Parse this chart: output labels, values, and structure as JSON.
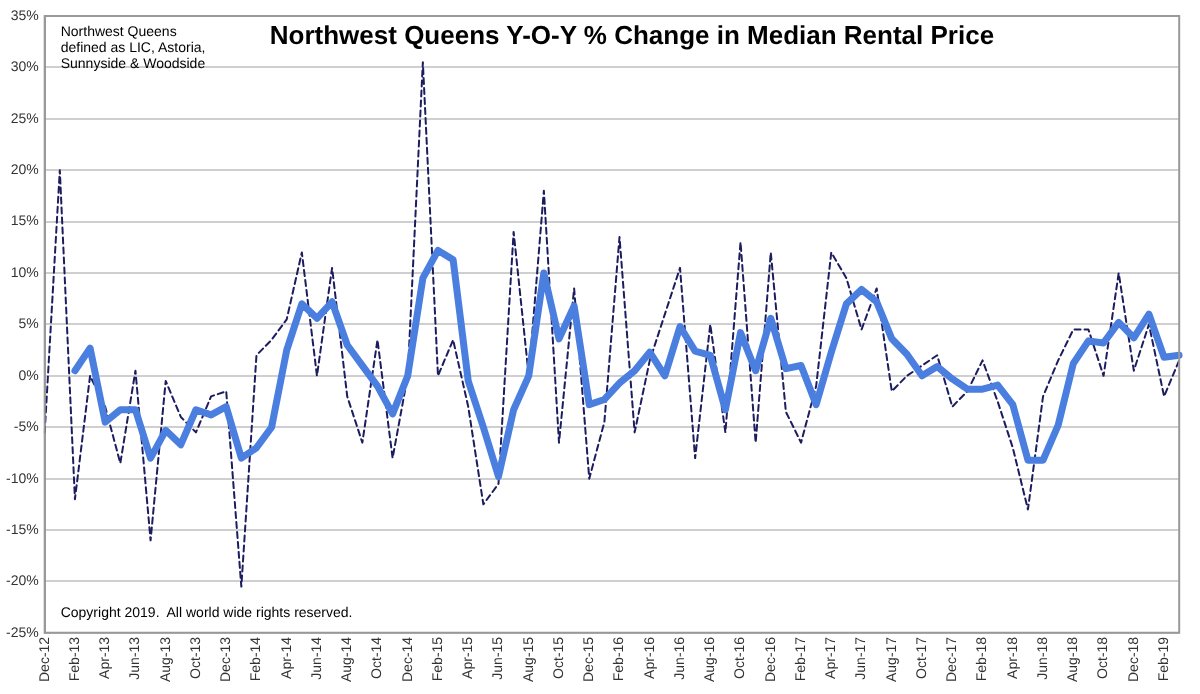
{
  "chart_data": {
    "type": "line",
    "title": "Northwest Queens Y-O-Y % Change in Median Rental Price",
    "annotations": [
      "Northwest Queens\ndefined as LIC, Astoria,\nSunnyside & Woodside",
      "Copyright 2019.  All world wide rights reserved."
    ],
    "categories": [
      "Dec-12",
      null,
      "Feb-13",
      null,
      "Apr-13",
      null,
      "Jun-13",
      null,
      "Aug-13",
      null,
      "Oct-13",
      null,
      "Dec-13",
      null,
      "Feb-14",
      null,
      "Apr-14",
      null,
      "Jun-14",
      null,
      "Aug-14",
      null,
      "Oct-14",
      null,
      "Dec-14",
      null,
      "Feb-15",
      null,
      "Apr-15",
      null,
      "Jun-15",
      null,
      "Aug-15",
      null,
      "Oct-15",
      null,
      "Dec-15",
      null,
      "Feb-16",
      null,
      "Apr-16",
      null,
      "Jun-16",
      null,
      "Aug-16",
      null,
      "Oct-16",
      null,
      "Dec-16",
      null,
      "Feb-17",
      null,
      "Apr-17",
      null,
      "Jun-17",
      null,
      "Aug-17",
      null,
      "Oct-17",
      null,
      "Dec-17",
      null,
      "Feb-18",
      null,
      "Apr-18",
      null,
      "Jun-18",
      null,
      "Aug-18",
      null,
      "Oct-18",
      null,
      "Dec-18",
      null,
      "Feb-19",
      null
    ],
    "series": [
      {
        "color": "#1c1c5e",
        "line_style": "dashed",
        "values": [
          -5.5,
          20,
          -12,
          0,
          -3,
          -8.5,
          0.5,
          -16,
          -0.5,
          -4,
          -5.5,
          -2,
          -1.5,
          -20.5,
          2,
          3.5,
          5.5,
          12,
          0,
          10.5,
          -2,
          -6.5,
          3.5,
          -8,
          0,
          30.5,
          0,
          3.5,
          -3,
          -12.5,
          -10.5,
          14,
          0,
          18,
          -6.5,
          8.5,
          -10,
          -4.5,
          13.5,
          -5.5,
          1.5,
          6,
          10.5,
          -8,
          5,
          -5.5,
          13,
          -6.5,
          12,
          -3.5,
          -6.5,
          -1,
          12,
          9.5,
          4.5,
          8.5,
          -1.5,
          0,
          1,
          2,
          -3,
          -1.5,
          1.5,
          -2.5,
          -7,
          -13,
          -2,
          1.5,
          4.5,
          4.5,
          0,
          10,
          0.5,
          5,
          -2,
          1.5
        ]
      },
      {
        "color": "#4a7fe0",
        "line_style": "solid",
        "values": [
          null,
          null,
          0.5,
          2.7,
          -4.5,
          -3.3,
          -3.3,
          -8,
          -5.3,
          -6.7,
          -3.3,
          -3.8,
          -3,
          -8,
          -7,
          -5,
          2.5,
          7,
          5.6,
          7.2,
          3,
          1,
          -1,
          -3.7,
          0,
          9.5,
          12.2,
          11.3,
          -0.5,
          -5,
          -9.8,
          -3.3,
          0,
          10,
          3.6,
          6.8,
          -2.8,
          -2.3,
          -0.7,
          0.5,
          2.3,
          0,
          4.8,
          2.4,
          2,
          -3.3,
          4.2,
          0.5,
          5.6,
          0.7,
          1,
          -2.8,
          2.3,
          7,
          8.4,
          7.2,
          3.6,
          2.1,
          0,
          0.9,
          -0.3,
          -1.3,
          -1.3,
          -0.9,
          -2.8,
          -8.2,
          -8.2,
          -4.8,
          1.2,
          3.4,
          3.2,
          5.2,
          3.7,
          6,
          1.8,
          2
        ]
      }
    ],
    "ylim": [
      -25,
      35
    ],
    "yticks": [
      {
        "value": -25,
        "label": "-25%"
      },
      {
        "value": -20,
        "label": "-20%"
      },
      {
        "value": -15,
        "label": "-15%"
      },
      {
        "value": -10,
        "label": "-10%"
      },
      {
        "value": -5,
        "label": "-5%"
      },
      {
        "value": 0,
        "label": "0%"
      },
      {
        "value": 5,
        "label": "5%"
      },
      {
        "value": 10,
        "label": "10%"
      },
      {
        "value": 15,
        "label": "15%"
      },
      {
        "value": 20,
        "label": "20%"
      },
      {
        "value": 25,
        "label": "25%"
      },
      {
        "value": 30,
        "label": "30%"
      },
      {
        "value": 35,
        "label": "35%"
      }
    ],
    "grid": "y",
    "marker": "none"
  }
}
